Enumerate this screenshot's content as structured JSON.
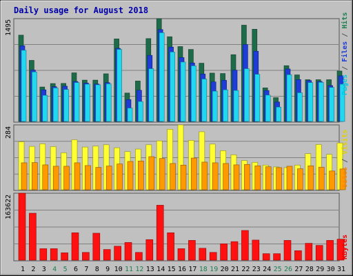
{
  "chart_data": [
    {
      "type": "bar",
      "title": "Daily usage for August 2018",
      "categories": [
        "1",
        "2",
        "3",
        "4",
        "5",
        "6",
        "7",
        "8",
        "9",
        "10",
        "11",
        "12",
        "13",
        "14",
        "15",
        "16",
        "17",
        "18",
        "19",
        "20",
        "21",
        "22",
        "23",
        "24",
        "25",
        "26",
        "27",
        "28",
        "29",
        "30",
        "31"
      ],
      "weekend_days": [
        "4",
        "5",
        "11",
        "12",
        "18",
        "19",
        "25",
        "26"
      ],
      "ylabel_max": "1495",
      "ylim": [
        0,
        1495
      ],
      "grid": true,
      "series": [
        {
          "name": "Hits",
          "color": "#1e6b4a",
          "values": [
            1255,
            888,
            501,
            551,
            553,
            707,
            601,
            601,
            693,
            1200,
            413,
            588,
            1205,
            1495,
            1232,
            1089,
            1047,
            847,
            703,
            697,
            971,
            1400,
            1341,
            488,
            346,
            811,
            677,
            607,
            607,
            607,
            733
          ]
        },
        {
          "name": "Files",
          "color": "#1e3cd8",
          "values": [
            1100,
            747,
            460,
            506,
            513,
            581,
            558,
            544,
            565,
            1063,
            317,
            453,
            961,
            1336,
            1081,
            929,
            851,
            690,
            575,
            598,
            746,
            1118,
            1021,
            450,
            283,
            763,
            609,
            595,
            582,
            522,
            664
          ]
        },
        {
          "name": "Pages",
          "color": "#22d8f0",
          "values": [
            1035,
            720,
            380,
            487,
            465,
            566,
            542,
            533,
            547,
            1048,
            195,
            290,
            767,
            1290,
            1010,
            864,
            809,
            617,
            441,
            460,
            451,
            767,
            686,
            383,
            209,
            680,
            417,
            566,
            569,
            495,
            542
          ]
        }
      ]
    },
    {
      "type": "bar",
      "categories": [
        "1",
        "2",
        "3",
        "4",
        "5",
        "6",
        "7",
        "8",
        "9",
        "10",
        "11",
        "12",
        "13",
        "14",
        "15",
        "16",
        "17",
        "18",
        "19",
        "20",
        "21",
        "22",
        "23",
        "24",
        "25",
        "26",
        "27",
        "28",
        "29",
        "30",
        "31"
      ],
      "ylabel_max": "284",
      "ylim": [
        0,
        284
      ],
      "grid": true,
      "series": [
        {
          "name": "Visits",
          "color": "#ffff33",
          "values": [
            210,
            190,
            201,
            189,
            162,
            219,
            187,
            191,
            197,
            184,
            167,
            178,
            197,
            214,
            265,
            284,
            216,
            254,
            200,
            171,
            153,
            128,
            120,
            108,
            100,
            97,
            108,
            158,
            198,
            155,
            205
          ]
        },
        {
          "name": "Sites",
          "color": "#ff9900",
          "values": [
            118,
            119,
            109,
            103,
            103,
            118,
            106,
            98,
            104,
            113,
            124,
            126,
            145,
            137,
            115,
            108,
            139,
            121,
            118,
            115,
            109,
            111,
            105,
            101,
            97,
            103,
            92,
            105,
            99,
            82,
            91
          ]
        }
      ]
    },
    {
      "type": "bar",
      "categories": [
        "1",
        "2",
        "3",
        "4",
        "5",
        "6",
        "7",
        "8",
        "9",
        "10",
        "11",
        "12",
        "13",
        "14",
        "15",
        "16",
        "17",
        "18",
        "19",
        "20",
        "21",
        "22",
        "23",
        "24",
        "25",
        "26",
        "27",
        "28",
        "29",
        "30",
        "31"
      ],
      "ylabel_max": "163622",
      "ylim": [
        0,
        163622
      ],
      "grid": true,
      "series": [
        {
          "name": "KBytes",
          "color": "#ff1111",
          "values": [
            163622,
            114706,
            28030,
            28030,
            17936,
            66864,
            18906,
            65850,
            26042,
            34094,
            43162,
            18908,
            50188,
            134270,
            66864,
            28030,
            48274,
            29024,
            18908,
            40072,
            45254,
            72530,
            49056,
            15824,
            15824,
            48274,
            23108,
            41184,
            36094,
            48274,
            51252
          ]
        }
      ]
    }
  ],
  "side_labels": {
    "top": [
      {
        "text": "Pages",
        "color": "#00c8e0"
      },
      {
        "text": " / ",
        "color": "#555555"
      },
      {
        "text": "Files",
        "color": "#1e3cd8"
      },
      {
        "text": " / ",
        "color": "#555555"
      },
      {
        "text": "Hits",
        "color": "#1e8050"
      }
    ],
    "middle": [
      {
        "text": "Sites",
        "color": "#ff8800"
      },
      {
        "text": " / ",
        "color": "#555555"
      },
      {
        "text": "Visits",
        "color": "#e0d000"
      }
    ],
    "bottom": [
      {
        "text": "KBytes",
        "color": "#ee0000"
      }
    ]
  }
}
